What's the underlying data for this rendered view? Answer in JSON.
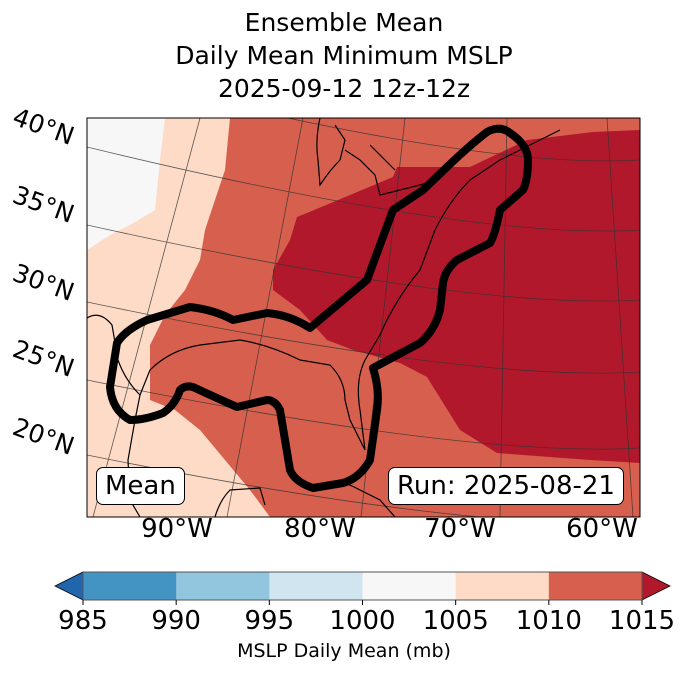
{
  "title": {
    "line1": "Ensemble Mean",
    "line2": "Daily Mean Minimum MSLP",
    "line3": "2025-09-12 12z-12z"
  },
  "annotations": {
    "left_box": "Mean",
    "right_box": "Run: 2025-08-21"
  },
  "chart_data": {
    "type": "heatmap",
    "title": "Ensemble Mean Daily Mean Minimum MSLP 2025-09-12 12z-12z",
    "lat_labels": [
      "40°N",
      "35°N",
      "30°N",
      "25°N",
      "20°N"
    ],
    "lon_labels": [
      "90°W",
      "80°W",
      "70°W",
      "60°W"
    ],
    "grid": true,
    "colorbar": {
      "levels": [
        985,
        990,
        995,
        1000,
        1005,
        1010,
        1015
      ],
      "tick_labels": [
        "985",
        "990",
        "995",
        "1000",
        "1005",
        "1010",
        "1015"
      ],
      "colors": [
        "#4393c3",
        "#92c5de",
        "#d1e5f0",
        "#f7f7f7",
        "#fddbc7",
        "#d6604d"
      ],
      "under_color": "#2166ac",
      "over_color": "#b2182b",
      "extend": "both",
      "label": "MSLP Daily Mean (mb)",
      "placement": "bottom"
    },
    "regions": [
      {
        "name": "1000-1005 mb",
        "where": "far northwest corner"
      },
      {
        "name": "1005-1010 mb",
        "where": "western edge and southwest (Mexico)"
      },
      {
        "name": "1010-1015 mb",
        "where": "central US, Gulf of Mexico, Caribbean"
      },
      {
        "name": ">1015 mb",
        "where": "US East Coast and western Atlantic"
      }
    ],
    "contour": {
      "color": "#000000",
      "description": "thick outline along Gulf coast and US East Coast"
    }
  }
}
